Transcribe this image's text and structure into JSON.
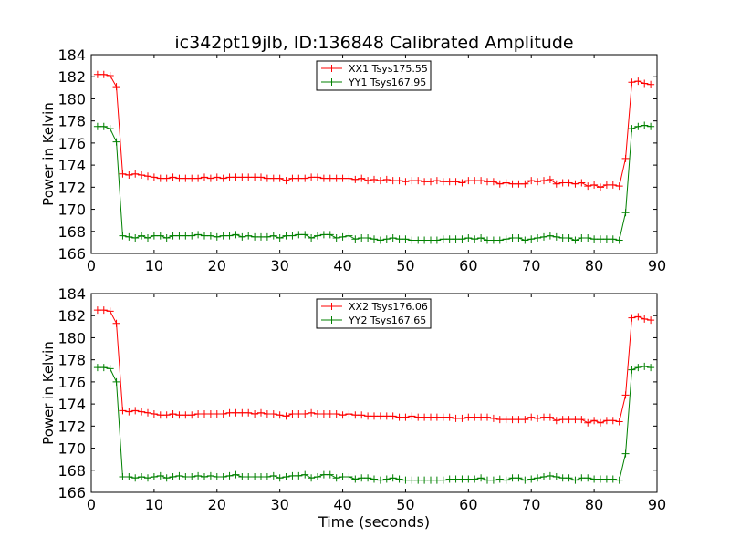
{
  "title": "ic342pt19jlb, ID:136848 Calibrated Amplitude",
  "xlabel": "Time (seconds)",
  "chart_data": [
    {
      "type": "line",
      "title": "ic342pt19jlb, ID:136848 Calibrated Amplitude",
      "xlabel": "",
      "ylabel": "Power in Kelvin",
      "xlim": [
        0,
        90
      ],
      "ylim": [
        166,
        184
      ],
      "xticks": [
        "0",
        "10",
        "20",
        "30",
        "40",
        "50",
        "60",
        "70",
        "80",
        "90"
      ],
      "yticks": [
        "166",
        "168",
        "170",
        "172",
        "174",
        "176",
        "178",
        "180",
        "182",
        "184"
      ],
      "grid": false,
      "legend_position": "top-center",
      "x": [
        1,
        2,
        3,
        4,
        5,
        6,
        7,
        8,
        9,
        10,
        11,
        12,
        13,
        14,
        15,
        16,
        17,
        18,
        19,
        20,
        21,
        22,
        23,
        24,
        25,
        26,
        27,
        28,
        29,
        30,
        31,
        32,
        33,
        34,
        35,
        36,
        37,
        38,
        39,
        40,
        41,
        42,
        43,
        44,
        45,
        46,
        47,
        48,
        49,
        50,
        51,
        52,
        53,
        54,
        55,
        56,
        57,
        58,
        59,
        60,
        61,
        62,
        63,
        64,
        65,
        66,
        67,
        68,
        69,
        70,
        71,
        72,
        73,
        74,
        75,
        76,
        77,
        78,
        79,
        80,
        81,
        82,
        83,
        84,
        85,
        86,
        87,
        88,
        89
      ],
      "series": [
        {
          "name": "XX1 Tsys175.55",
          "color": "#ff0000",
          "values": [
            182.2,
            182.2,
            182.1,
            181.1,
            173.2,
            173.1,
            173.2,
            173.1,
            173.0,
            172.9,
            172.8,
            172.8,
            172.9,
            172.8,
            172.8,
            172.8,
            172.8,
            172.9,
            172.8,
            172.9,
            172.8,
            172.9,
            172.9,
            172.9,
            172.9,
            172.9,
            172.9,
            172.8,
            172.8,
            172.8,
            172.6,
            172.8,
            172.8,
            172.8,
            172.9,
            172.9,
            172.8,
            172.8,
            172.8,
            172.8,
            172.8,
            172.7,
            172.8,
            172.6,
            172.7,
            172.6,
            172.7,
            172.6,
            172.6,
            172.5,
            172.6,
            172.6,
            172.5,
            172.5,
            172.6,
            172.5,
            172.5,
            172.5,
            172.4,
            172.6,
            172.6,
            172.6,
            172.5,
            172.5,
            172.3,
            172.4,
            172.3,
            172.3,
            172.3,
            172.6,
            172.5,
            172.6,
            172.7,
            172.3,
            172.4,
            172.4,
            172.3,
            172.4,
            172.1,
            172.2,
            172.0,
            172.2,
            172.2,
            172.1,
            174.6,
            181.5,
            181.6,
            181.4,
            181.3
          ]
        },
        {
          "name": "YY1 Tsys167.95",
          "color": "#008000",
          "values": [
            177.5,
            177.5,
            177.3,
            176.1,
            167.6,
            167.5,
            167.4,
            167.6,
            167.4,
            167.6,
            167.6,
            167.4,
            167.6,
            167.6,
            167.6,
            167.6,
            167.7,
            167.6,
            167.6,
            167.5,
            167.6,
            167.6,
            167.7,
            167.5,
            167.6,
            167.5,
            167.5,
            167.5,
            167.6,
            167.4,
            167.6,
            167.6,
            167.7,
            167.7,
            167.4,
            167.6,
            167.7,
            167.7,
            167.4,
            167.5,
            167.6,
            167.3,
            167.4,
            167.4,
            167.3,
            167.2,
            167.3,
            167.4,
            167.3,
            167.3,
            167.2,
            167.2,
            167.2,
            167.2,
            167.2,
            167.3,
            167.3,
            167.3,
            167.3,
            167.4,
            167.3,
            167.4,
            167.2,
            167.2,
            167.2,
            167.3,
            167.4,
            167.4,
            167.2,
            167.3,
            167.4,
            167.5,
            167.6,
            167.5,
            167.4,
            167.4,
            167.2,
            167.4,
            167.4,
            167.3,
            167.3,
            167.3,
            167.3,
            167.2,
            169.7,
            177.3,
            177.5,
            177.6,
            177.5
          ]
        }
      ]
    },
    {
      "type": "line",
      "title": "",
      "xlabel": "Time (seconds)",
      "ylabel": "Power in Kelvin",
      "xlim": [
        0,
        90
      ],
      "ylim": [
        166,
        184
      ],
      "xticks": [
        "0",
        "10",
        "20",
        "30",
        "40",
        "50",
        "60",
        "70",
        "80",
        "90"
      ],
      "yticks": [
        "166",
        "168",
        "170",
        "172",
        "174",
        "176",
        "178",
        "180",
        "182",
        "184"
      ],
      "grid": false,
      "legend_position": "top-center",
      "x": [
        1,
        2,
        3,
        4,
        5,
        6,
        7,
        8,
        9,
        10,
        11,
        12,
        13,
        14,
        15,
        16,
        17,
        18,
        19,
        20,
        21,
        22,
        23,
        24,
        25,
        26,
        27,
        28,
        29,
        30,
        31,
        32,
        33,
        34,
        35,
        36,
        37,
        38,
        39,
        40,
        41,
        42,
        43,
        44,
        45,
        46,
        47,
        48,
        49,
        50,
        51,
        52,
        53,
        54,
        55,
        56,
        57,
        58,
        59,
        60,
        61,
        62,
        63,
        64,
        65,
        66,
        67,
        68,
        69,
        70,
        71,
        72,
        73,
        74,
        75,
        76,
        77,
        78,
        79,
        80,
        81,
        82,
        83,
        84,
        85,
        86,
        87,
        88,
        89
      ],
      "series": [
        {
          "name": "XX2 Tsys176.06",
          "color": "#ff0000",
          "values": [
            182.5,
            182.5,
            182.4,
            181.3,
            173.4,
            173.3,
            173.4,
            173.3,
            173.2,
            173.1,
            173.0,
            173.0,
            173.1,
            173.0,
            173.0,
            173.0,
            173.1,
            173.1,
            173.1,
            173.1,
            173.1,
            173.2,
            173.2,
            173.2,
            173.2,
            173.1,
            173.2,
            173.1,
            173.1,
            173.0,
            172.9,
            173.1,
            173.1,
            173.1,
            173.2,
            173.1,
            173.1,
            173.1,
            173.1,
            173.0,
            173.1,
            173.0,
            173.0,
            172.9,
            172.9,
            172.9,
            172.9,
            172.9,
            172.8,
            172.8,
            172.9,
            172.8,
            172.8,
            172.8,
            172.8,
            172.8,
            172.8,
            172.7,
            172.7,
            172.8,
            172.8,
            172.8,
            172.8,
            172.7,
            172.6,
            172.6,
            172.6,
            172.6,
            172.6,
            172.8,
            172.7,
            172.8,
            172.8,
            172.5,
            172.6,
            172.6,
            172.6,
            172.6,
            172.3,
            172.5,
            172.3,
            172.5,
            172.5,
            172.4,
            174.8,
            181.8,
            181.9,
            181.7,
            181.6
          ]
        },
        {
          "name": "YY2 Tsys167.65",
          "color": "#008000",
          "values": [
            177.3,
            177.3,
            177.2,
            176.0,
            167.4,
            167.4,
            167.3,
            167.4,
            167.3,
            167.4,
            167.5,
            167.3,
            167.4,
            167.5,
            167.4,
            167.4,
            167.5,
            167.4,
            167.5,
            167.4,
            167.4,
            167.5,
            167.6,
            167.4,
            167.4,
            167.4,
            167.4,
            167.4,
            167.5,
            167.3,
            167.4,
            167.5,
            167.5,
            167.6,
            167.3,
            167.4,
            167.6,
            167.6,
            167.3,
            167.4,
            167.4,
            167.2,
            167.3,
            167.3,
            167.2,
            167.1,
            167.2,
            167.3,
            167.2,
            167.1,
            167.1,
            167.1,
            167.1,
            167.1,
            167.1,
            167.1,
            167.2,
            167.2,
            167.2,
            167.2,
            167.2,
            167.3,
            167.1,
            167.1,
            167.2,
            167.1,
            167.3,
            167.3,
            167.1,
            167.2,
            167.3,
            167.4,
            167.5,
            167.4,
            167.3,
            167.3,
            167.1,
            167.3,
            167.3,
            167.2,
            167.2,
            167.2,
            167.2,
            167.1,
            169.5,
            177.1,
            177.3,
            177.4,
            177.3
          ]
        }
      ]
    }
  ]
}
